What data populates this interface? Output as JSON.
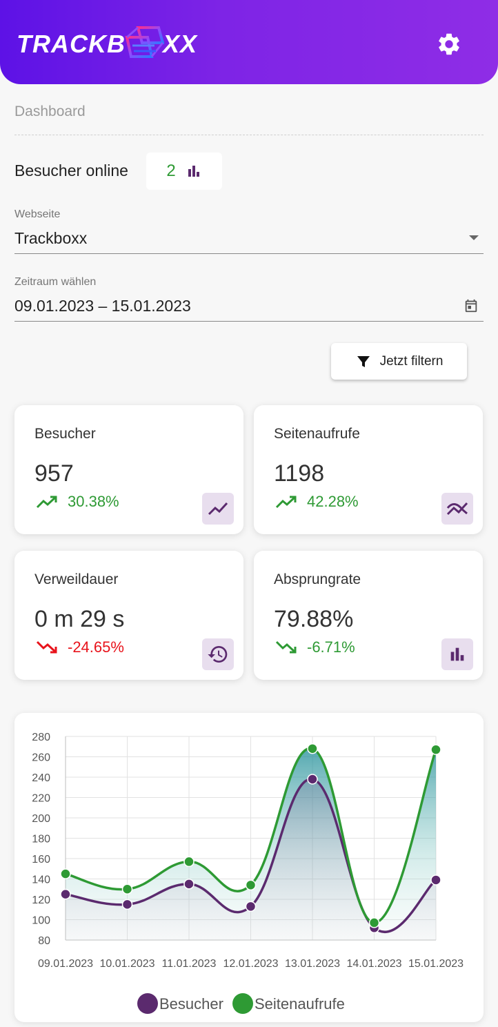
{
  "header": {
    "logo_left": "TRACKB",
    "logo_right": "XX",
    "settings_icon": "gear-icon"
  },
  "breadcrumb": "Dashboard",
  "online": {
    "label": "Besucher online",
    "count": "2",
    "icon": "bar-chart-icon"
  },
  "website": {
    "label": "Webseite",
    "value": "Trackboxx"
  },
  "period": {
    "label": "Zeitraum wählen",
    "value": "09.01.2023 – 15.01.2023"
  },
  "filter_button": {
    "label": "Jetzt filtern",
    "icon": "filter-icon"
  },
  "cards": [
    {
      "title": "Besucher",
      "value": "957",
      "change": "30.38%",
      "direction": "up",
      "icon": "trending-up-icon"
    },
    {
      "title": "Seitenaufrufe",
      "value": "1198",
      "change": "42.28%",
      "direction": "up",
      "icon": "multiline-chart-icon"
    },
    {
      "title": "Verweildauer",
      "value": "0 m 29 s",
      "change": "-24.65%",
      "direction": "down",
      "icon": "history-icon"
    },
    {
      "title": "Absprungrate",
      "value": "79.88%",
      "change": "-6.71%",
      "direction": "down",
      "icon": "bar-chart-icon"
    }
  ],
  "colors": {
    "header_start": "#5d12e6",
    "header_end": "#8f2de6",
    "positive": "#2e9a34",
    "negative": "#e8131b",
    "purple": "#5b2a6e",
    "icon_bg": "#e8deee"
  },
  "chart_data": {
    "type": "line",
    "categories": [
      "09.01.2023",
      "10.01.2023",
      "11.01.2023",
      "12.01.2023",
      "13.01.2023",
      "14.01.2023",
      "15.01.2023"
    ],
    "series": [
      {
        "name": "Besucher",
        "color": "#5b2a6e",
        "values": [
          125,
          115,
          135,
          113,
          238,
          92,
          139
        ]
      },
      {
        "name": "Seitenaufrufe",
        "color": "#2e9a34",
        "values": [
          145,
          130,
          157,
          134,
          268,
          97,
          267
        ]
      }
    ],
    "ylim": [
      80,
      280
    ],
    "yticks": [
      80,
      100,
      120,
      140,
      160,
      180,
      200,
      220,
      240,
      260,
      280
    ],
    "grid": true,
    "legend_position": "bottom"
  }
}
